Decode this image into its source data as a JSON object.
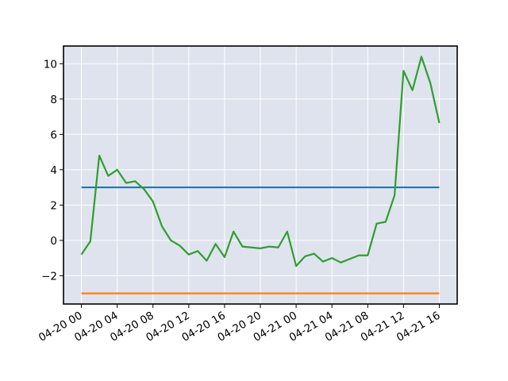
{
  "chart_data": {
    "type": "line",
    "title": "",
    "xlabel": "",
    "ylabel": "",
    "x_ticks": [
      {
        "value": 0,
        "label": "04-20 00"
      },
      {
        "value": 4,
        "label": "04-20 04"
      },
      {
        "value": 8,
        "label": "04-20 08"
      },
      {
        "value": 12,
        "label": "04-20 12"
      },
      {
        "value": 16,
        "label": "04-20 16"
      },
      {
        "value": 20,
        "label": "04-20 20"
      },
      {
        "value": 24,
        "label": "04-21 00"
      },
      {
        "value": 28,
        "label": "04-21 04"
      },
      {
        "value": 32,
        "label": "04-21 08"
      },
      {
        "value": 36,
        "label": "04-21 12"
      },
      {
        "value": 40,
        "label": "04-21 16"
      }
    ],
    "y_ticks": [
      {
        "value": -2,
        "label": "−2"
      },
      {
        "value": 0,
        "label": "0"
      },
      {
        "value": 2,
        "label": "2"
      },
      {
        "value": 4,
        "label": "4"
      },
      {
        "value": 6,
        "label": "6"
      },
      {
        "value": 8,
        "label": "8"
      },
      {
        "value": 10,
        "label": "10"
      }
    ],
    "xlim": [
      -2,
      42
    ],
    "ylim": [
      -3.6,
      11.0
    ],
    "grid": true,
    "legend": null,
    "series": [
      {
        "color": "#1f77b4",
        "x": [
          0,
          40
        ],
        "y": [
          3.0,
          3.0
        ]
      },
      {
        "color": "#ff7f0e",
        "x": [
          0,
          40
        ],
        "y": [
          -3.0,
          -3.0
        ]
      },
      {
        "color": "#2ca02c",
        "x": [
          0,
          1,
          2,
          3,
          4,
          5,
          6,
          7,
          8,
          9,
          10,
          11,
          12,
          13,
          14,
          15,
          16,
          17,
          18,
          19,
          20,
          21,
          22,
          23,
          24,
          25,
          26,
          27,
          28,
          29,
          30,
          31,
          32,
          33,
          34,
          35,
          36,
          37,
          38,
          39,
          40
        ],
        "y": [
          -0.8,
          -0.05,
          4.8,
          3.65,
          4.0,
          3.25,
          3.35,
          2.9,
          2.2,
          0.8,
          0.0,
          -0.3,
          -0.8,
          -0.6,
          -1.15,
          -0.2,
          -0.95,
          0.5,
          -0.35,
          -0.4,
          -0.45,
          -0.35,
          -0.4,
          0.5,
          -1.45,
          -0.9,
          -0.75,
          -1.2,
          -1.0,
          -1.25,
          -1.05,
          -0.85,
          -0.85,
          0.95,
          1.05,
          2.55,
          9.6,
          8.5,
          10.4,
          8.9,
          6.65
        ]
      }
    ]
  },
  "colors": {
    "plot_background": "#dfe3ee",
    "grid": "#ffffff",
    "frame": "#000000"
  }
}
